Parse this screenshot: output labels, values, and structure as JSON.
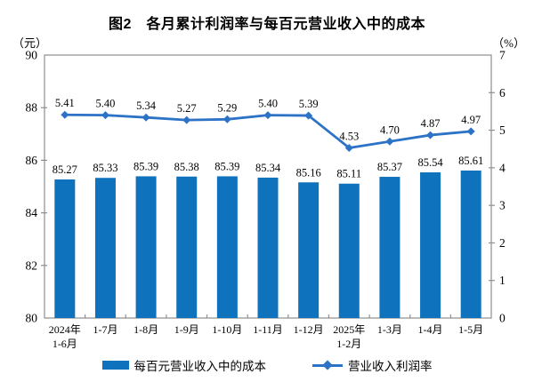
{
  "title": "图2　各月累计利润率与每百元营业收入中的成本",
  "left_unit": "（元）",
  "right_unit": "（%）",
  "chart_data": {
    "type": "bar",
    "combo": "bar+line dual-axis",
    "grid": false,
    "legend_position": "bottom",
    "categories": [
      {
        "lines": [
          "2024年",
          "1-6月"
        ]
      },
      {
        "lines": [
          "1-7月"
        ]
      },
      {
        "lines": [
          "1-8月"
        ]
      },
      {
        "lines": [
          "1-9月"
        ]
      },
      {
        "lines": [
          "1-10月"
        ]
      },
      {
        "lines": [
          "1-11月"
        ]
      },
      {
        "lines": [
          "1-12月"
        ]
      },
      {
        "lines": [
          "2025年",
          "1-2月"
        ]
      },
      {
        "lines": [
          "1-3月"
        ]
      },
      {
        "lines": [
          "1-4月"
        ]
      },
      {
        "lines": [
          "1-5月"
        ]
      }
    ],
    "series": [
      {
        "name": "每百元营业收入中的成本",
        "kind": "bar",
        "axis": "left",
        "color": "#0F72BC",
        "values": [
          85.27,
          85.33,
          85.39,
          85.38,
          85.39,
          85.34,
          85.16,
          85.11,
          85.37,
          85.54,
          85.61
        ]
      },
      {
        "name": "营业收入利润率",
        "kind": "line",
        "axis": "right",
        "color": "#2C72C7",
        "values": [
          5.41,
          5.4,
          5.34,
          5.27,
          5.29,
          5.4,
          5.39,
          4.53,
          4.7,
          4.87,
          4.97
        ]
      }
    ],
    "left_axis": {
      "min": 80,
      "max": 90,
      "step": 2,
      "unit": "元"
    },
    "right_axis": {
      "min": 0,
      "max": 7,
      "step": 1,
      "unit": "%"
    },
    "axis_color": "#8E8E8E",
    "label_decimals": 2
  }
}
